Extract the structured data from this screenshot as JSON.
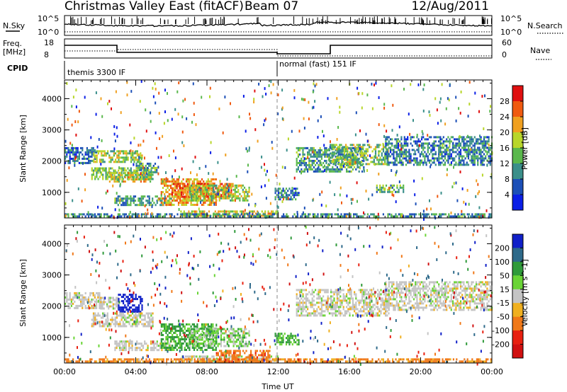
{
  "header": {
    "title": "Christmas Valley East (fitACF)",
    "beam": "Beam 07",
    "date": "12/Aug/2011"
  },
  "aux_panels": {
    "nsky_label": "N.Sky",
    "nsky_ticks": [
      "10^5",
      "10^0"
    ],
    "nsearch_label": "N.Search",
    "nsearch_ticks": [
      "10^5",
      "10^0"
    ],
    "freq_label_1": "Freq.",
    "freq_label_2": "[MHz]",
    "freq_ticks": [
      "18",
      "8"
    ],
    "nave_label": "Nave",
    "nave_ticks": [
      "60",
      "0"
    ],
    "cpid_label": "CPID",
    "cpid_segments": [
      {
        "label": "themis 3300 IF",
        "start_hour": 0,
        "end_hour": 12
      },
      {
        "label": "normal (fast) 151 IF",
        "start_hour": 12,
        "end_hour": 24
      }
    ]
  },
  "chart_data": [
    {
      "type": "heatmap",
      "name": "Power",
      "ylabel": "Slant Range [km]",
      "yticks": [
        "4000",
        "3000",
        "2000",
        "1000"
      ],
      "ytick_values": [
        4000,
        3000,
        2000,
        1000
      ],
      "ylim": [
        180,
        4600
      ],
      "xlim": [
        0,
        24
      ],
      "colorbar": {
        "label": "Power [dB]",
        "ticks": [
          "28",
          "24",
          "20",
          "16",
          "12",
          "8",
          "4"
        ],
        "range": [
          0,
          32
        ],
        "colors": [
          "#0a1ee6",
          "#1c4fb7",
          "#3a8f8a",
          "#5ab84c",
          "#b8d62a",
          "#f0a020",
          "#f05a10",
          "#e01010"
        ]
      },
      "echo_regions": [
        {
          "t0": 0.0,
          "t1": 1.8,
          "r0": 1950,
          "r1": 2450,
          "p": 7
        },
        {
          "t0": 1.6,
          "t1": 4.4,
          "r0": 1950,
          "r1": 2350,
          "p": 17
        },
        {
          "t0": 1.5,
          "t1": 5.0,
          "r0": 1450,
          "r1": 1800,
          "p": 14
        },
        {
          "t0": 2.5,
          "t1": 4.8,
          "r0": 1350,
          "r1": 1650,
          "p": 19
        },
        {
          "t0": 4.0,
          "t1": 5.2,
          "r0": 1650,
          "r1": 1950,
          "p": 12
        },
        {
          "t0": 2.8,
          "t1": 6.0,
          "r0": 580,
          "r1": 900,
          "p": 11
        },
        {
          "t0": 5.4,
          "t1": 8.5,
          "r0": 600,
          "r1": 1450,
          "p": 22
        },
        {
          "t0": 6.0,
          "t1": 9.5,
          "r0": 850,
          "r1": 1300,
          "p": 25
        },
        {
          "t0": 7.0,
          "t1": 10.4,
          "r0": 750,
          "r1": 1250,
          "p": 16
        },
        {
          "t0": 6.5,
          "t1": 12.0,
          "r0": 230,
          "r1": 420,
          "p": 20
        },
        {
          "t0": 0.0,
          "t1": 24.0,
          "r0": 200,
          "r1": 330,
          "p": 10
        },
        {
          "t0": 11.8,
          "t1": 13.2,
          "r0": 800,
          "r1": 1150,
          "p": 9
        },
        {
          "t0": 13.0,
          "t1": 16.8,
          "r0": 1700,
          "r1": 2450,
          "p": 11
        },
        {
          "t0": 14.8,
          "t1": 18.2,
          "r0": 1900,
          "r1": 2550,
          "p": 15
        },
        {
          "t0": 18.0,
          "t1": 24.0,
          "r0": 1900,
          "r1": 2800,
          "p": 9
        },
        {
          "t0": 17.5,
          "t1": 19.0,
          "r0": 1000,
          "r1": 1250,
          "p": 13
        }
      ]
    },
    {
      "type": "heatmap",
      "name": "Velocity",
      "ylabel": "Slant Range [km]",
      "yticks": [
        "4000",
        "3000",
        "2000",
        "1000"
      ],
      "ytick_values": [
        4000,
        3000,
        2000,
        1000
      ],
      "ylim": [
        180,
        4600
      ],
      "xlim": [
        0,
        24
      ],
      "xlabel": "Time UT",
      "xticks": [
        "00:00",
        "04:00",
        "08:00",
        "12:00",
        "16:00",
        "20:00",
        "00:00"
      ],
      "xtick_values": [
        0,
        4,
        8,
        12,
        16,
        20,
        24
      ],
      "colorbar": {
        "label": "Velocity [m s^-1]",
        "ticks": [
          "200",
          "100",
          "50",
          "15",
          "-15",
          "-50",
          "-100",
          "-200"
        ],
        "colors": [
          "#1020c8",
          "#2e6a8a",
          "#2f9a3a",
          "#6ad436",
          "#c4c4c4",
          "#f0b020",
          "#f07818",
          "#e82010",
          "#d01010"
        ]
      },
      "echo_regions": [
        {
          "t0": 0.0,
          "t1": 2.0,
          "r0": 1950,
          "r1": 2450,
          "v": 0
        },
        {
          "t0": 2.0,
          "t1": 3.0,
          "r0": 1950,
          "r1": 2300,
          "v": 0
        },
        {
          "t0": 3.0,
          "t1": 4.4,
          "r0": 1850,
          "r1": 2400,
          "v": 220
        },
        {
          "t0": 1.5,
          "t1": 5.0,
          "r0": 1350,
          "r1": 1800,
          "v": 0
        },
        {
          "t0": 2.8,
          "t1": 6.0,
          "r0": 580,
          "r1": 900,
          "v": 0
        },
        {
          "t0": 5.4,
          "t1": 8.5,
          "r0": 600,
          "r1": 1450,
          "v": 40
        },
        {
          "t0": 7.0,
          "t1": 10.4,
          "r0": 700,
          "r1": 1300,
          "v": 20
        },
        {
          "t0": 6.5,
          "t1": 12.0,
          "r0": 230,
          "r1": 420,
          "v": 0
        },
        {
          "t0": 0.0,
          "t1": 24.0,
          "r0": 200,
          "r1": 330,
          "v": -40
        },
        {
          "t0": 11.8,
          "t1": 13.2,
          "r0": 800,
          "r1": 1150,
          "v": 35
        },
        {
          "t0": 13.0,
          "t1": 18.2,
          "r0": 1700,
          "r1": 2550,
          "v": 0
        },
        {
          "t0": 18.0,
          "t1": 24.0,
          "r0": 1900,
          "r1": 2800,
          "v": 0
        },
        {
          "t0": 8.5,
          "t1": 11.5,
          "r0": 250,
          "r1": 600,
          "v": -60
        }
      ]
    }
  ]
}
